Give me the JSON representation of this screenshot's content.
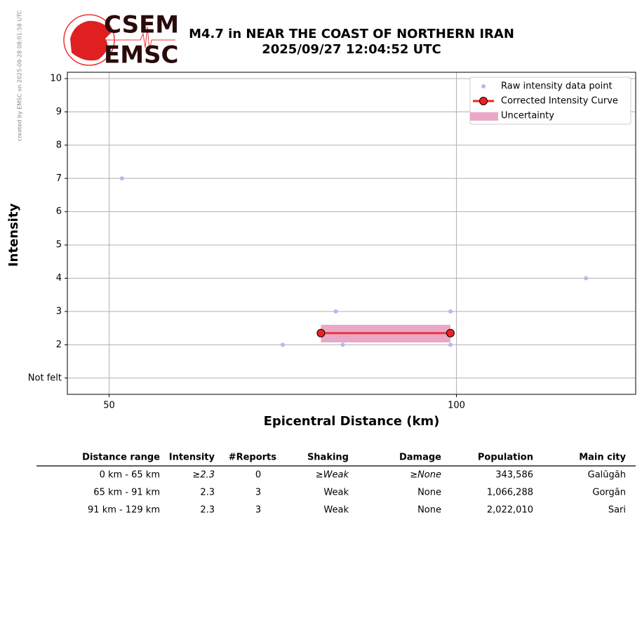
{
  "credit": "created by EMSC on 2025-09-28 08:01:58 UTC",
  "logo": {
    "top": "CSEM",
    "bottom": "EMSC"
  },
  "chart_data": {
    "type": "scatter",
    "title": "M4.7 in NEAR THE COAST OF NORTHERN IRAN",
    "subtitle": "2025/09/27 12:04:52 UTC",
    "x_label": "Epicentral Distance (km)",
    "y_label": "Intensity",
    "x_scale": "log",
    "grid": true,
    "legend": "upper right",
    "xlim": [
      46,
      143
    ],
    "xticks": [
      50,
      100
    ],
    "ylim": [
      0.51,
      10.19
    ],
    "yticks": [
      {
        "value": 1,
        "label": "Not felt"
      },
      2,
      3,
      4,
      5,
      6,
      7,
      8,
      9,
      10
    ],
    "series": [
      {
        "name": "Raw intensity data point",
        "color": "#aebde8",
        "x": [
          51.3,
          70.7,
          78.6,
          79.7,
          98.8,
          98.8,
          129.5
        ],
        "values": [
          7,
          2,
          3,
          2,
          3,
          2,
          4
        ]
      },
      {
        "name": "Corrected Intensity Curve",
        "color": "#ee2222",
        "x": [
          76.3,
          98.8
        ],
        "values": [
          2.35,
          2.35
        ]
      },
      {
        "name": "Uncertainty",
        "color": "#e8a8c6",
        "x": [
          76.3,
          98.8
        ],
        "lower": [
          2.07,
          2.07
        ],
        "upper": [
          2.6,
          2.6
        ]
      }
    ]
  },
  "table": {
    "header": [
      "Distance range",
      "Intensity",
      "#Reports",
      "Shaking",
      "Damage",
      "Population",
      "Main city"
    ],
    "rows": [
      [
        "0 km -   65 km",
        "≥2.3",
        "0",
        "≥Weak",
        "≥None",
        "343,586",
        "Galūgāh"
      ],
      [
        "65 km -   91 km",
        "2.3",
        "3",
        "Weak",
        "None",
        "1,066,288",
        "Gorgān"
      ],
      [
        "91 km -  129 km",
        "2.3",
        "3",
        "Weak",
        "None",
        "2,022,010",
        "Sari"
      ]
    ]
  }
}
